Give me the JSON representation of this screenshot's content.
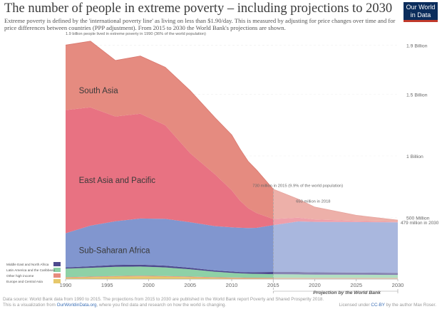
{
  "header": {
    "title": "The number of people in extreme poverty – including projections to 2030",
    "subtitle": "Extreme poverty is defined by the 'international poverty line' as living on less than $1.90/day. This is measured by adjusting for price changes over time and for price differences between countries (PPP adjustment). From 2015 to 2030 the World Bank's projections are shown.",
    "logo_line1": "Our World",
    "logo_line2": "in Data"
  },
  "chart_data": {
    "type": "area",
    "stacked": true,
    "xlim": [
      1990,
      2030
    ],
    "ylim": [
      0,
      2.0
    ],
    "x_ticks": [
      "1990",
      "1995",
      "2000",
      "2005",
      "2010",
      "2015",
      "2020",
      "2025",
      "2030"
    ],
    "y_ticks": [
      {
        "value": 0.5,
        "label": "500 Million"
      },
      {
        "value": 1.0,
        "label": "1 Billion"
      },
      {
        "value": 1.5,
        "label": "1.5 Billion"
      },
      {
        "value": 1.9,
        "label": "1.9 Billion"
      }
    ],
    "y_unit": "billion people",
    "projection_start": 2015,
    "projection_label": "Projection by the World Bank",
    "years": [
      1990,
      1993,
      1996,
      1999,
      2002,
      2005,
      2008,
      2010,
      2011,
      2012,
      2013,
      2015,
      2018,
      2020,
      2025,
      2030
    ],
    "series": [
      {
        "name": "Europe and Central Asia",
        "color": "#e6c86b",
        "values": [
          0.01,
          0.015,
          0.02,
          0.022,
          0.02,
          0.015,
          0.01,
          0.008,
          0.007,
          0.006,
          0.006,
          0.005,
          0.005,
          0.004,
          0.004,
          0.004
        ]
      },
      {
        "name": "Other high income",
        "color": "#e78c7e",
        "values": [
          0.005,
          0.005,
          0.005,
          0.005,
          0.005,
          0.005,
          0.005,
          0.005,
          0.005,
          0.005,
          0.005,
          0.005,
          0.005,
          0.005,
          0.005,
          0.005
        ]
      },
      {
        "name": "Latin America and the Caribbean",
        "color": "#8ed1a6",
        "values": [
          0.07,
          0.072,
          0.075,
          0.075,
          0.07,
          0.06,
          0.045,
          0.038,
          0.035,
          0.033,
          0.032,
          0.03,
          0.028,
          0.027,
          0.026,
          0.025
        ]
      },
      {
        "name": "Middle East and North Africa",
        "color": "#4e4a8e",
        "values": [
          0.01,
          0.012,
          0.015,
          0.015,
          0.014,
          0.012,
          0.01,
          0.01,
          0.01,
          0.011,
          0.013,
          0.018,
          0.02,
          0.019,
          0.018,
          0.017
        ]
      },
      {
        "name": "Sub-Saharan Africa",
        "color": "#8196cf",
        "label": "Sub-Saharan Africa",
        "values": [
          0.277,
          0.33,
          0.355,
          0.375,
          0.38,
          0.37,
          0.36,
          0.36,
          0.36,
          0.36,
          0.36,
          0.38,
          0.41,
          0.41,
          0.41,
          0.41
        ]
      },
      {
        "name": "East Asia and Pacific",
        "color": "#e87282",
        "label": "East Asia and Pacific",
        "values": [
          1.0,
          0.96,
          0.85,
          0.85,
          0.76,
          0.56,
          0.42,
          0.3,
          0.22,
          0.16,
          0.12,
          0.05,
          0.03,
          0.02,
          0.01,
          0.005
        ]
      },
      {
        "name": "South Asia",
        "color": "#e58b80",
        "label": "South Asia",
        "values": [
          0.528,
          0.538,
          0.455,
          0.469,
          0.471,
          0.508,
          0.46,
          0.45,
          0.42,
          0.38,
          0.35,
          0.242,
          0.152,
          0.1,
          0.045,
          0.013
        ]
      }
    ],
    "annotations": [
      {
        "text": "1.9 billion people lived in extreme poverty in 1990 (36% of the world population)",
        "x": 1990,
        "y": 1.93
      },
      {
        "text": "730 million in 2015 (9.9% of the world population)",
        "x": 2015,
        "y": 0.73
      },
      {
        "text": "650 million in 2018",
        "x": 2018,
        "y": 0.65
      },
      {
        "text": "479 million in 2030",
        "x": 2030,
        "y": 0.479
      }
    ],
    "legend": {
      "placement": "bottom-left",
      "items": [
        "Middle East and North Africa",
        "Latin America and the Caribbean",
        "Other high income",
        "Europe and Central Asia"
      ]
    }
  },
  "footer": {
    "line1": "Data source: World Bank data from 1990 to 2015. The projections from 2015 to 2030 are published in the World Bank report Poverty and Shared Prosperity 2018.",
    "line2_prefix": "This is a visualization from ",
    "line2_link": "OurWorldinData.org",
    "line2_suffix": ", where you find data and research on how the world is changing.",
    "license_prefix": "Licensed under ",
    "license_link": "CC-BY",
    "license_suffix": " by the author Max Roser."
  }
}
